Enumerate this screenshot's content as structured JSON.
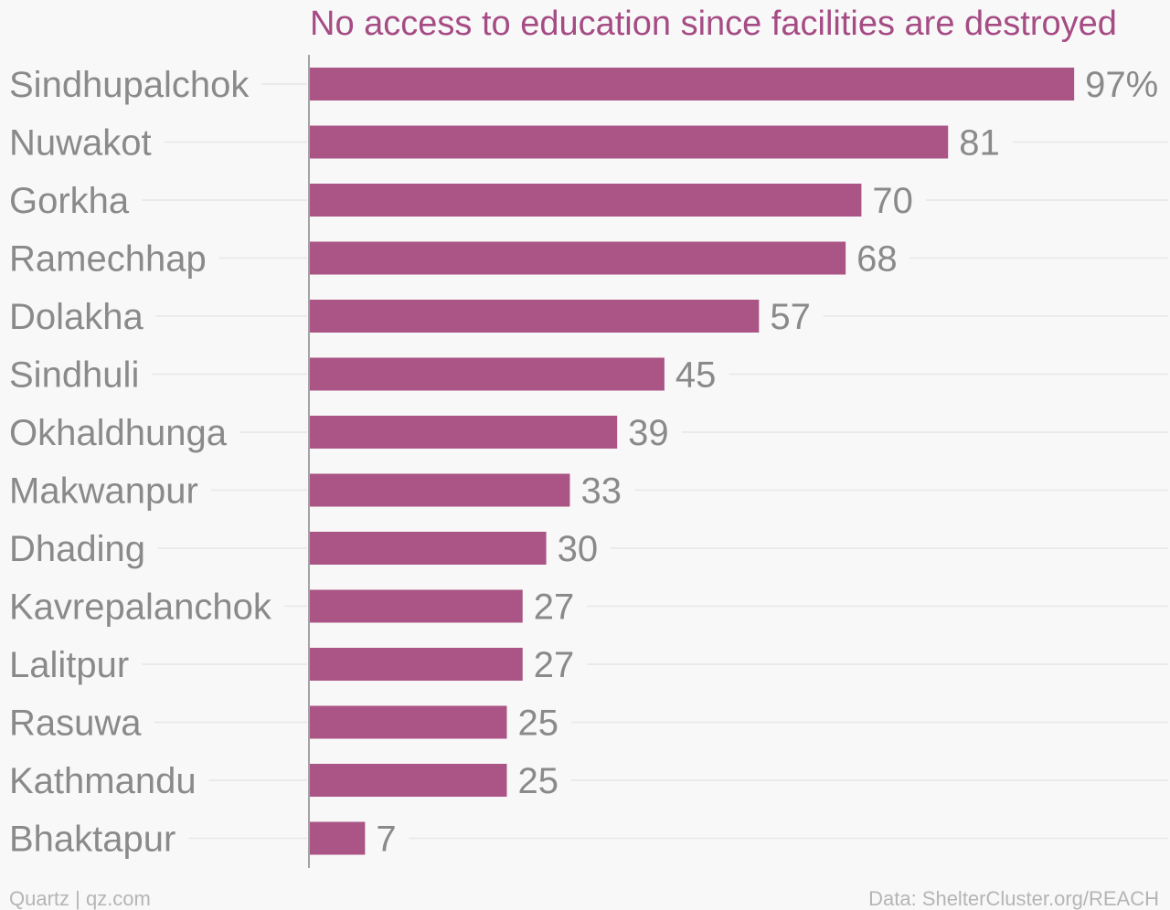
{
  "chart_data": {
    "type": "bar",
    "orientation": "horizontal",
    "title": "No access to education since facilities are destroyed",
    "categories": [
      "Sindhupalchok",
      "Nuwakot",
      "Gorkha",
      "Ramechhap",
      "Dolakha",
      "Sindhuli",
      "Okhaldhunga",
      "Makwanpur",
      "Dhading",
      "Kavrepalanchok",
      "Lalitpur",
      "Rasuwa",
      "Kathmandu",
      "Bhaktapur"
    ],
    "values": [
      97,
      81,
      70,
      68,
      57,
      45,
      39,
      33,
      30,
      27,
      27,
      25,
      25,
      7
    ],
    "value_labels": [
      "97%",
      "81",
      "70",
      "68",
      "57",
      "45",
      "39",
      "33",
      "30",
      "27",
      "27",
      "25",
      "25",
      "7"
    ],
    "xlim": [
      0,
      100
    ],
    "grid": false,
    "colors": {
      "bar": "#aa5586",
      "title": "#a64c85",
      "text": "#8a8a8a"
    }
  },
  "footer": {
    "source_left": "Quartz | qz.com",
    "source_right": "Data: ShelterCluster.org/REACH"
  }
}
